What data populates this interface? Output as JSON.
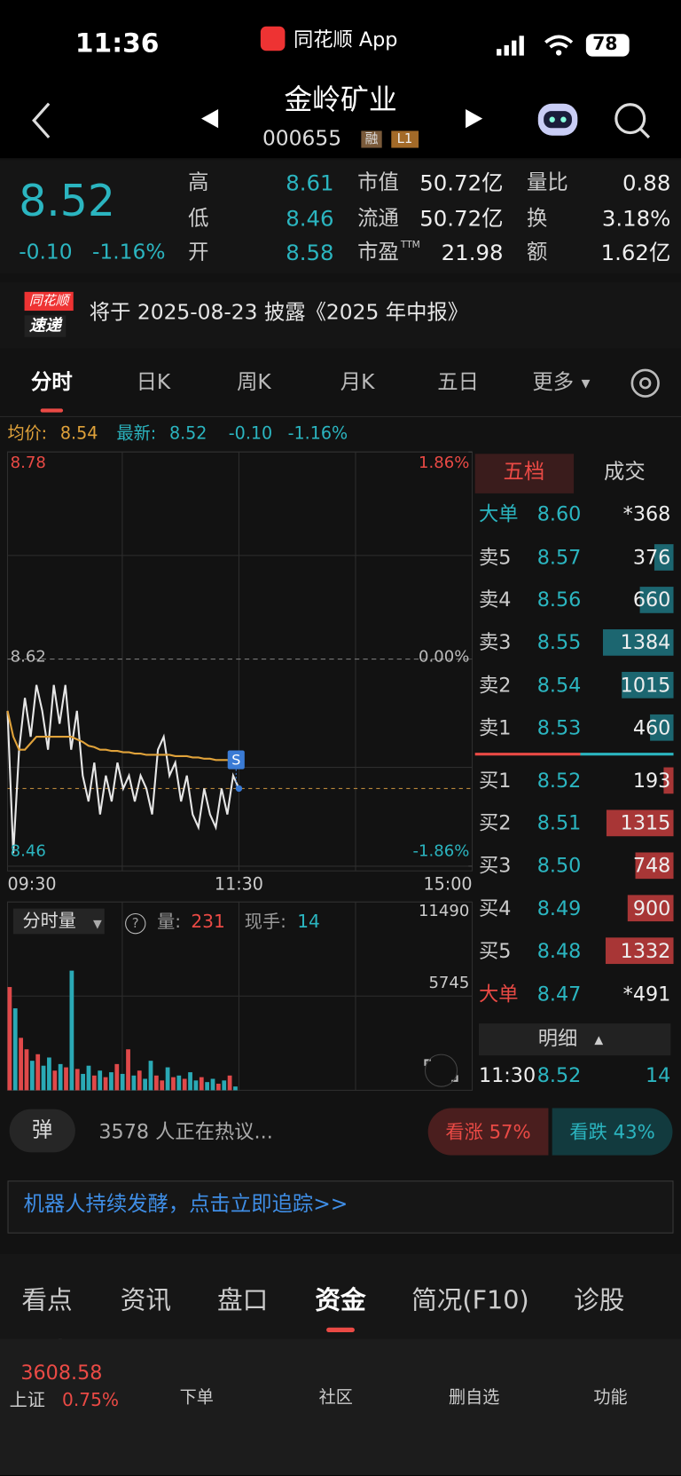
{
  "status": {
    "time": "11:36",
    "app": "同花顺 App",
    "battery": "78"
  },
  "header": {
    "title": "金岭矿业",
    "code": "000655",
    "badges": [
      "融",
      "L1"
    ]
  },
  "quote": {
    "price": "8.52",
    "change": "-0.10",
    "percent": "-1.16%",
    "stats": [
      {
        "label": "高",
        "value": "8.61"
      },
      {
        "label": "市值",
        "value": "50.72亿"
      },
      {
        "label": "量比",
        "value": "0.88"
      },
      {
        "label": "低",
        "value": "8.46"
      },
      {
        "label": "流通",
        "value": "50.72亿"
      },
      {
        "label": "换",
        "value": "3.18%"
      },
      {
        "label": "开",
        "value": "8.58"
      },
      {
        "label": "市盈",
        "sup": "TTM",
        "value": "21.98"
      },
      {
        "label": "额",
        "value": "1.62亿"
      }
    ]
  },
  "notice": {
    "badge": [
      "同花顺",
      "速递"
    ],
    "text": "将于 2025-08-23 披露《2025 年中报》"
  },
  "tabs": [
    "分时",
    "日K",
    "周K",
    "月K",
    "五日",
    "更多"
  ],
  "legend": [
    {
      "label": "均价:",
      "value": "8.54"
    },
    {
      "label": "最新:",
      "value": "8.52"
    }
  ],
  "legend_change": [
    "-0.10",
    "-1.16%"
  ],
  "signal": "S",
  "chart_data": [
    {
      "type": "line",
      "xticks": [
        "09:30",
        "11:30",
        "15:00"
      ],
      "ylim": [
        8.46,
        8.78
      ],
      "yticks": [
        8.78,
        8.62,
        8.46
      ],
      "y2lim": [
        -1.86,
        1.86
      ],
      "y2ticks": [
        {
          "value": 1.86,
          "label": "1.86%"
        },
        {
          "value": 0,
          "label": "0.00%"
        },
        {
          "value": -1.86,
          "label": "-1.86%"
        }
      ],
      "series": [
        {
          "color": "#e0a23a",
          "values": [
            8.58,
            8.56,
            8.55,
            8.55,
            8.555,
            8.56,
            8.56,
            8.56,
            8.56,
            8.56,
            8.56,
            8.56,
            8.558,
            8.556,
            8.553,
            8.552,
            8.55,
            8.55,
            8.549,
            8.549,
            8.548,
            8.548,
            8.547,
            8.547,
            8.546,
            8.546,
            8.546,
            8.546,
            8.546,
            8.545,
            8.545,
            8.545,
            8.544,
            8.544,
            8.543,
            8.543,
            8.542,
            8.542,
            8.542,
            8.541,
            8.541
          ]
        },
        {
          "color": "#e6e6e6",
          "values": [
            8.58,
            8.47,
            8.55,
            8.59,
            8.56,
            8.6,
            8.58,
            8.55,
            8.6,
            8.57,
            8.6,
            8.55,
            8.58,
            8.53,
            8.51,
            8.54,
            8.5,
            8.53,
            8.51,
            8.54,
            8.52,
            8.53,
            8.51,
            8.53,
            8.52,
            8.5,
            8.55,
            8.56,
            8.53,
            8.54,
            8.51,
            8.53,
            8.5,
            8.49,
            8.52,
            8.5,
            8.49,
            8.52,
            8.5,
            8.53,
            8.52
          ]
        }
      ]
    },
    {
      "type": "bar",
      "ylim": [
        0,
        11490
      ],
      "yticks": [
        11490,
        5745
      ],
      "values": [
        6300,
        5000,
        3200,
        2500,
        1800,
        2200,
        1500,
        2000,
        1200,
        1600,
        1400,
        7300,
        1300,
        1000,
        1500,
        900,
        1200,
        800,
        1100,
        1600,
        1000,
        2500,
        900,
        1200,
        700,
        1800,
        900,
        600,
        1400,
        800,
        900,
        700,
        1100,
        600,
        800,
        500,
        700,
        400,
        600,
        900,
        231
      ]
    }
  ],
  "volume_header": {
    "selector": "分时量",
    "qty_label": "量:",
    "qty": "231",
    "hand_label": "现手:",
    "hand": "14"
  },
  "orderbook": {
    "tabs": [
      "五档",
      "成交"
    ],
    "top": {
      "label": "大单",
      "price": "8.60",
      "volume": "*368"
    },
    "sell": [
      {
        "label": "卖5",
        "price": "8.57",
        "volume": 376
      },
      {
        "label": "卖4",
        "price": "8.56",
        "volume": 660
      },
      {
        "label": "卖3",
        "price": "8.55",
        "volume": 1384
      },
      {
        "label": "卖2",
        "price": "8.54",
        "volume": 1015
      },
      {
        "label": "卖1",
        "price": "8.53",
        "volume": 460
      }
    ],
    "buy": [
      {
        "label": "买1",
        "price": "8.52",
        "volume": 193
      },
      {
        "label": "买2",
        "price": "8.51",
        "volume": 1315
      },
      {
        "label": "买3",
        "price": "8.50",
        "volume": 748
      },
      {
        "label": "买4",
        "price": "8.49",
        "volume": 900
      },
      {
        "label": "买5",
        "price": "8.48",
        "volume": 1332
      }
    ],
    "bottom": {
      "label": "大单",
      "price": "8.47",
      "volume": "*491"
    },
    "detail_title": "明细",
    "detail": {
      "time": "11:30",
      "price": "8.52",
      "volume": "14"
    }
  },
  "discussion": {
    "icon": "弹",
    "text": "3578 人正在热议...",
    "up": "看涨 57%",
    "down": "看跌 43%"
  },
  "banner": {
    "text": "机器人持续发酵，点击立即追踪>>"
  },
  "section_tabs": [
    "看点",
    "资讯",
    "盘口",
    "资金",
    "简况(F10)",
    "诊股"
  ],
  "bottom_nav": {
    "index_value": "3608.58",
    "index_name": "上证",
    "index_change": "0.75%",
    "items": [
      "下单",
      "社区",
      "删自选",
      "功能"
    ]
  }
}
